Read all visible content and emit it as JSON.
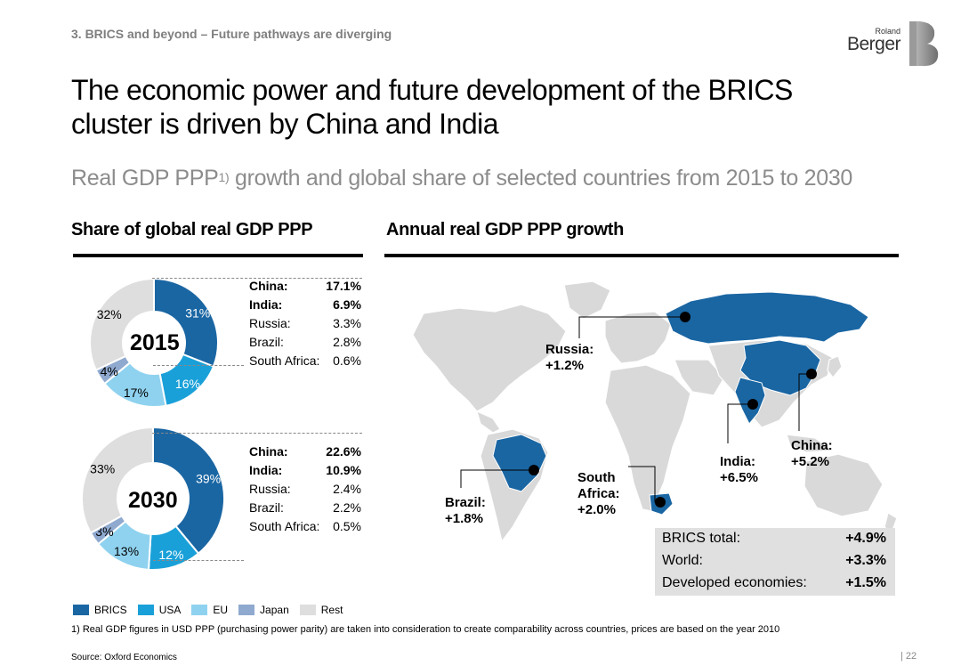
{
  "header": {
    "section": "3. BRICS and beyond – Future pathways are diverging",
    "logo_roland": "Roland",
    "logo_berger": "Berger"
  },
  "title": {
    "line1": "The economic power and future development of the BRICS",
    "line2": "cluster is driven by China and India"
  },
  "subtitle": {
    "main": "Real GDP PPP",
    "sup": "1)",
    "rest": " growth and global share of selected countries from 2015 to 2030"
  },
  "colors": {
    "BRICS": "#1a66a3",
    "USA": "#1aa0d8",
    "EU": "#8fd2ef",
    "Japan": "#8fa9cf",
    "Rest": "#dedede",
    "map_land": "#d9d9d9",
    "summary_bg": "#e0e0e0"
  },
  "chart_data": [
    {
      "type": "pie",
      "title": "Share of global real GDP PPP",
      "center_label": "2015",
      "categories": [
        "BRICS",
        "USA",
        "EU",
        "Japan",
        "Rest"
      ],
      "values": [
        31,
        16,
        17,
        4,
        32
      ],
      "value_labels": [
        "31%",
        "16%",
        "17%",
        "4%",
        "32%"
      ],
      "breakdown": [
        {
          "country": "China:",
          "value": "17.1%",
          "bold": true
        },
        {
          "country": "India:",
          "value": "6.9%",
          "bold": true
        },
        {
          "country": "Russia:",
          "value": "3.3%",
          "bold": false
        },
        {
          "country": "Brazil:",
          "value": "2.8%",
          "bold": false
        },
        {
          "country": "South Africa:",
          "value": "0.6%",
          "bold": false
        }
      ]
    },
    {
      "type": "pie",
      "center_label": "2030",
      "categories": [
        "BRICS",
        "USA",
        "EU",
        "Japan",
        "Rest"
      ],
      "values": [
        39,
        12,
        13,
        3,
        33
      ],
      "value_labels": [
        "39%",
        "12%",
        "13%",
        "3%",
        "33%"
      ],
      "breakdown": [
        {
          "country": "China:",
          "value": "22.6%",
          "bold": true
        },
        {
          "country": "India:",
          "value": "10.9%",
          "bold": true
        },
        {
          "country": "Russia:",
          "value": "2.4%",
          "bold": false
        },
        {
          "country": "Brazil:",
          "value": "2.2%",
          "bold": false
        },
        {
          "country": "South Africa:",
          "value": "0.5%",
          "bold": false
        }
      ]
    }
  ],
  "left_heading": "Share of global real GDP PPP",
  "right_heading": "Annual real GDP PPP growth",
  "map": {
    "labels": [
      {
        "name": "Russia:",
        "value": "+1.2%"
      },
      {
        "name": "India:",
        "value": "+6.5%"
      },
      {
        "name": "China:",
        "value": "+5.2%"
      },
      {
        "name": "Brazil:",
        "value": "+1.8%"
      },
      {
        "name": "South Africa:",
        "value": "+2.0%"
      }
    ],
    "south_line1": "South",
    "south_line2": "Africa:"
  },
  "summary": [
    {
      "name": "BRICS total:",
      "value": "+4.9%"
    },
    {
      "name": "World:",
      "value": "+3.3%"
    },
    {
      "name": "Developed economies:",
      "value": "+1.5%"
    }
  ],
  "legend": [
    "BRICS",
    "USA",
    "EU",
    "Japan",
    "Rest"
  ],
  "footnote": "1) Real GDP figures in USD PPP (purchasing power parity) are taken into consideration to create comparability across countries, prices are based on the year 2010",
  "source": "Source: Oxford Economics",
  "page_number": "22"
}
